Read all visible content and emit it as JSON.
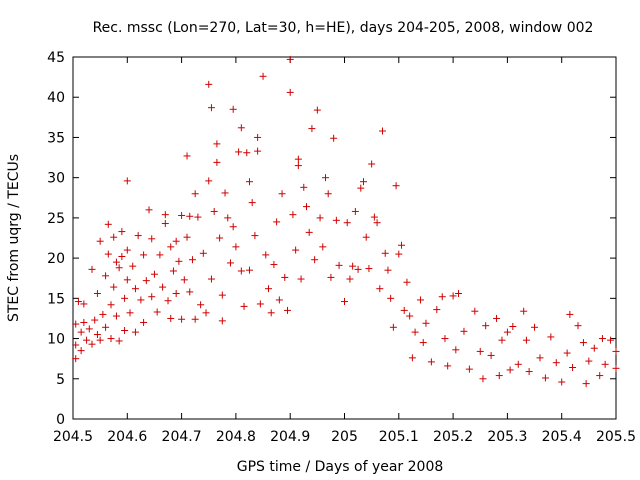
{
  "chart_data": {
    "type": "scatter",
    "title": "Rec. mssc (Lon=270, Lat=30, h=HE), days 204-205, 2008, window 002",
    "xlabel": "GPS time / Days of year 2008",
    "ylabel": "STEC from uqrg / TECUs",
    "xlim": [
      204.5,
      205.5
    ],
    "ylim": [
      0,
      45
    ],
    "xticks": [
      204.5,
      204.6,
      204.7,
      204.8,
      204.9,
      205,
      205.1,
      205.2,
      205.3,
      205.4,
      205.5
    ],
    "xtick_labels": [
      "204.5",
      "204.6",
      "204.7",
      "204.8",
      "204.9",
      "205",
      "205.1",
      "205.2",
      "205.3",
      "205.4",
      "205.5"
    ],
    "yticks": [
      0,
      5,
      10,
      15,
      20,
      25,
      30,
      35,
      40,
      45
    ],
    "ytick_labels": [
      "0",
      "5",
      "10",
      "15",
      "20",
      "25",
      "30",
      "35",
      "40",
      "45"
    ],
    "marker": "plus",
    "color": "#d00000",
    "series": [
      {
        "name": "STEC",
        "points": [
          [
            204.505,
            7.5
          ],
          [
            204.505,
            9.2
          ],
          [
            204.505,
            11.8
          ],
          [
            204.51,
            14.6
          ],
          [
            204.515,
            8.5
          ],
          [
            204.515,
            10.8
          ],
          [
            204.52,
            14.3
          ],
          [
            204.52,
            12.0
          ],
          [
            204.525,
            9.8
          ],
          [
            204.53,
            11.2
          ],
          [
            204.535,
            18.6
          ],
          [
            204.535,
            9.3
          ],
          [
            204.54,
            12.3
          ],
          [
            204.545,
            15.6
          ],
          [
            204.545,
            10.5
          ],
          [
            204.55,
            22.1
          ],
          [
            204.55,
            9.8
          ],
          [
            204.555,
            13.0
          ],
          [
            204.56,
            17.8
          ],
          [
            204.56,
            11.4
          ],
          [
            204.565,
            24.2
          ],
          [
            204.565,
            20.5
          ],
          [
            204.57,
            14.2
          ],
          [
            204.57,
            10.0
          ],
          [
            204.575,
            22.6
          ],
          [
            204.575,
            16.4
          ],
          [
            204.58,
            19.5
          ],
          [
            204.58,
            12.8
          ],
          [
            204.585,
            18.8
          ],
          [
            204.585,
            9.7
          ],
          [
            204.59,
            23.3
          ],
          [
            204.59,
            20.2
          ],
          [
            204.595,
            15.0
          ],
          [
            204.595,
            11.0
          ],
          [
            204.6,
            29.6
          ],
          [
            204.6,
            21.0
          ],
          [
            204.6,
            17.3
          ],
          [
            204.605,
            13.2
          ],
          [
            204.61,
            19.0
          ],
          [
            204.615,
            16.2
          ],
          [
            204.615,
            10.8
          ],
          [
            204.62,
            22.8
          ],
          [
            204.625,
            14.8
          ],
          [
            204.63,
            20.4
          ],
          [
            204.63,
            12.0
          ],
          [
            204.635,
            17.2
          ],
          [
            204.64,
            26.0
          ],
          [
            204.645,
            22.4
          ],
          [
            204.645,
            15.2
          ],
          [
            204.65,
            18.0
          ],
          [
            204.655,
            13.3
          ],
          [
            204.66,
            20.4
          ],
          [
            204.665,
            16.4
          ],
          [
            204.67,
            25.4
          ],
          [
            204.67,
            24.3
          ],
          [
            204.675,
            14.7
          ],
          [
            204.68,
            21.4
          ],
          [
            204.68,
            12.5
          ],
          [
            204.685,
            18.4
          ],
          [
            204.69,
            22.1
          ],
          [
            204.69,
            15.6
          ],
          [
            204.695,
            19.6
          ],
          [
            204.7,
            25.3
          ],
          [
            204.7,
            12.4
          ],
          [
            204.705,
            17.3
          ],
          [
            204.71,
            32.7
          ],
          [
            204.71,
            22.6
          ],
          [
            204.715,
            25.2
          ],
          [
            204.715,
            15.8
          ],
          [
            204.72,
            19.8
          ],
          [
            204.725,
            28.0
          ],
          [
            204.725,
            12.4
          ],
          [
            204.73,
            25.1
          ],
          [
            204.735,
            14.2
          ],
          [
            204.74,
            20.6
          ],
          [
            204.745,
            13.2
          ],
          [
            204.75,
            41.6
          ],
          [
            204.75,
            29.6
          ],
          [
            204.755,
            38.7
          ],
          [
            204.755,
            17.4
          ],
          [
            204.76,
            25.8
          ],
          [
            204.765,
            34.2
          ],
          [
            204.765,
            31.9
          ],
          [
            204.77,
            22.5
          ],
          [
            204.775,
            15.4
          ],
          [
            204.775,
            12.2
          ],
          [
            204.78,
            28.1
          ],
          [
            204.785,
            25.0
          ],
          [
            204.79,
            19.4
          ],
          [
            204.795,
            38.5
          ],
          [
            204.795,
            23.9
          ],
          [
            204.8,
            21.4
          ],
          [
            204.805,
            33.2
          ],
          [
            204.81,
            36.2
          ],
          [
            204.81,
            18.4
          ],
          [
            204.815,
            14.0
          ],
          [
            204.82,
            33.1
          ],
          [
            204.825,
            29.5
          ],
          [
            204.825,
            18.5
          ],
          [
            204.83,
            26.9
          ],
          [
            204.835,
            22.8
          ],
          [
            204.84,
            35.0
          ],
          [
            204.84,
            33.3
          ],
          [
            204.845,
            14.3
          ],
          [
            204.85,
            42.6
          ],
          [
            204.855,
            20.4
          ],
          [
            204.86,
            16.2
          ],
          [
            204.865,
            13.2
          ],
          [
            204.87,
            19.2
          ],
          [
            204.875,
            24.5
          ],
          [
            204.88,
            14.8
          ],
          [
            204.885,
            28.0
          ],
          [
            204.89,
            17.6
          ],
          [
            204.895,
            13.5
          ],
          [
            204.9,
            44.7
          ],
          [
            204.9,
            40.6
          ],
          [
            204.905,
            25.4
          ],
          [
            204.91,
            21.0
          ],
          [
            204.915,
            32.3
          ],
          [
            204.915,
            31.5
          ],
          [
            204.92,
            17.4
          ],
          [
            204.925,
            28.8
          ],
          [
            204.93,
            26.4
          ],
          [
            204.935,
            23.2
          ],
          [
            204.94,
            36.1
          ],
          [
            204.945,
            19.8
          ],
          [
            204.95,
            38.4
          ],
          [
            204.955,
            25.0
          ],
          [
            204.96,
            21.4
          ],
          [
            204.965,
            30.0
          ],
          [
            204.97,
            28.0
          ],
          [
            204.975,
            17.6
          ],
          [
            204.98,
            34.9
          ],
          [
            204.985,
            24.7
          ],
          [
            204.99,
            19.1
          ],
          [
            205.0,
            14.6
          ],
          [
            205.005,
            24.4
          ],
          [
            205.01,
            17.4
          ],
          [
            205.015,
            19.0
          ],
          [
            205.02,
            25.8
          ],
          [
            205.025,
            18.6
          ],
          [
            205.03,
            28.7
          ],
          [
            205.035,
            29.5
          ],
          [
            205.04,
            22.6
          ],
          [
            205.045,
            18.7
          ],
          [
            205.05,
            31.7
          ],
          [
            205.055,
            25.1
          ],
          [
            205.06,
            24.4
          ],
          [
            205.065,
            16.2
          ],
          [
            205.07,
            35.8
          ],
          [
            205.075,
            20.6
          ],
          [
            205.08,
            18.5
          ],
          [
            205.085,
            15.0
          ],
          [
            205.09,
            11.4
          ],
          [
            205.095,
            29.0
          ],
          [
            205.1,
            20.5
          ],
          [
            205.105,
            21.6
          ],
          [
            205.11,
            13.5
          ],
          [
            205.115,
            17.0
          ],
          [
            205.12,
            12.8
          ],
          [
            205.125,
            7.6
          ],
          [
            205.13,
            10.8
          ],
          [
            205.14,
            14.8
          ],
          [
            205.145,
            9.5
          ],
          [
            205.15,
            11.9
          ],
          [
            205.16,
            7.1
          ],
          [
            205.17,
            13.6
          ],
          [
            205.18,
            15.2
          ],
          [
            205.185,
            10.0
          ],
          [
            205.19,
            6.6
          ],
          [
            205.2,
            15.3
          ],
          [
            205.205,
            8.6
          ],
          [
            205.21,
            15.6
          ],
          [
            205.22,
            10.9
          ],
          [
            205.23,
            6.2
          ],
          [
            205.24,
            13.4
          ],
          [
            205.25,
            8.4
          ],
          [
            205.255,
            5.0
          ],
          [
            205.26,
            11.6
          ],
          [
            205.27,
            7.9
          ],
          [
            205.28,
            12.5
          ],
          [
            205.285,
            5.4
          ],
          [
            205.29,
            9.8
          ],
          [
            205.3,
            10.8
          ],
          [
            205.305,
            6.1
          ],
          [
            205.31,
            11.5
          ],
          [
            205.32,
            6.8
          ],
          [
            205.33,
            13.4
          ],
          [
            205.335,
            9.8
          ],
          [
            205.34,
            5.9
          ],
          [
            205.35,
            11.4
          ],
          [
            205.36,
            7.6
          ],
          [
            205.37,
            5.1
          ],
          [
            205.38,
            10.2
          ],
          [
            205.39,
            7.0
          ],
          [
            205.4,
            4.6
          ],
          [
            205.41,
            8.2
          ],
          [
            205.415,
            13.0
          ],
          [
            205.42,
            6.4
          ],
          [
            205.43,
            11.6
          ],
          [
            205.44,
            9.5
          ],
          [
            205.445,
            4.4
          ],
          [
            205.45,
            7.2
          ],
          [
            205.46,
            8.8
          ],
          [
            205.47,
            5.4
          ],
          [
            205.475,
            10.0
          ],
          [
            205.48,
            6.8
          ],
          [
            205.49,
            9.8
          ],
          [
            205.5,
            8.4
          ],
          [
            205.5,
            6.3
          ]
        ]
      }
    ]
  }
}
